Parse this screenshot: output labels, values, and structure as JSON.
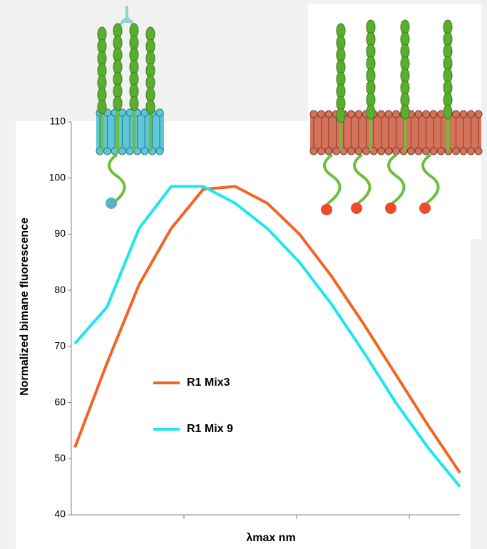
{
  "chart_data": {
    "type": "line",
    "x_label": "λmax nm",
    "y_label": "Normalized bimane fluorescence",
    "ylim": [
      40,
      110
    ],
    "yticks": [
      40,
      50,
      60,
      70,
      80,
      90,
      100,
      110
    ],
    "series": [
      {
        "name": "R1 Mix3",
        "color": "#f26522",
        "values": [
          52,
          67,
          81,
          91,
          98,
          98.5,
          95.5,
          90,
          82.5,
          74,
          65,
          56,
          47.5
        ]
      },
      {
        "name": "R1 Mix 9",
        "color": "#1ee6f0",
        "values": [
          70.5,
          77,
          91,
          98.5,
          98.5,
          95.5,
          91,
          85,
          77.5,
          69,
          60,
          52,
          45
        ]
      }
    ]
  }
}
